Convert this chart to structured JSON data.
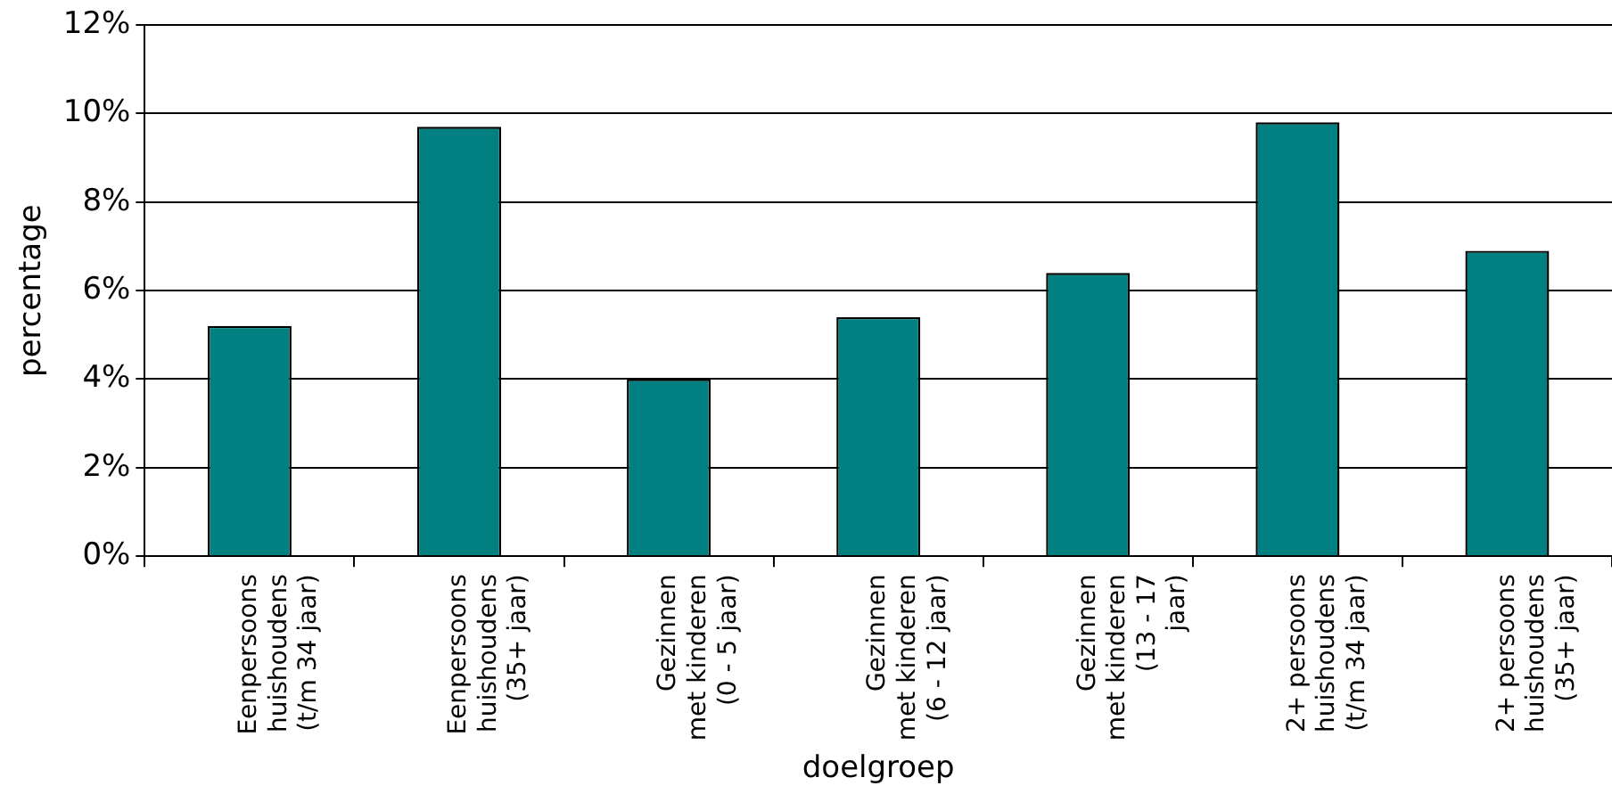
{
  "chart_data": {
    "type": "bar",
    "xlabel": "doelgroep",
    "ylabel": "percentage",
    "categories": [
      "Eenpersoons\nhuishoudens\n(t/m 34 jaar)",
      "Eenpersoons\nhuishoudens\n(35+ jaar)",
      "Gezinnen\nmet kinderen\n(0 - 5 jaar)",
      "Gezinnen\nmet kinderen\n(6 - 12 jaar)",
      "Gezinnen\nmet kinderen\n(13 - 17\njaar)",
      "2+ persoons\nhuishoudens\n(t/m 34 jaar)",
      "2+ persoons\nhuishoudens\n(35+ jaar)"
    ],
    "values": [
      5.2,
      9.7,
      4.0,
      5.4,
      6.4,
      9.8,
      6.9
    ],
    "color": "#008080",
    "ylim": [
      0,
      12
    ],
    "yticks": [
      {
        "value": 0,
        "label": "0%"
      },
      {
        "value": 2,
        "label": "2%"
      },
      {
        "value": 4,
        "label": "4%"
      },
      {
        "value": 6,
        "label": "6%"
      },
      {
        "value": 8,
        "label": "8%"
      },
      {
        "value": 10,
        "label": "10%"
      },
      {
        "value": 12,
        "label": "12%"
      }
    ],
    "grid": "y"
  }
}
